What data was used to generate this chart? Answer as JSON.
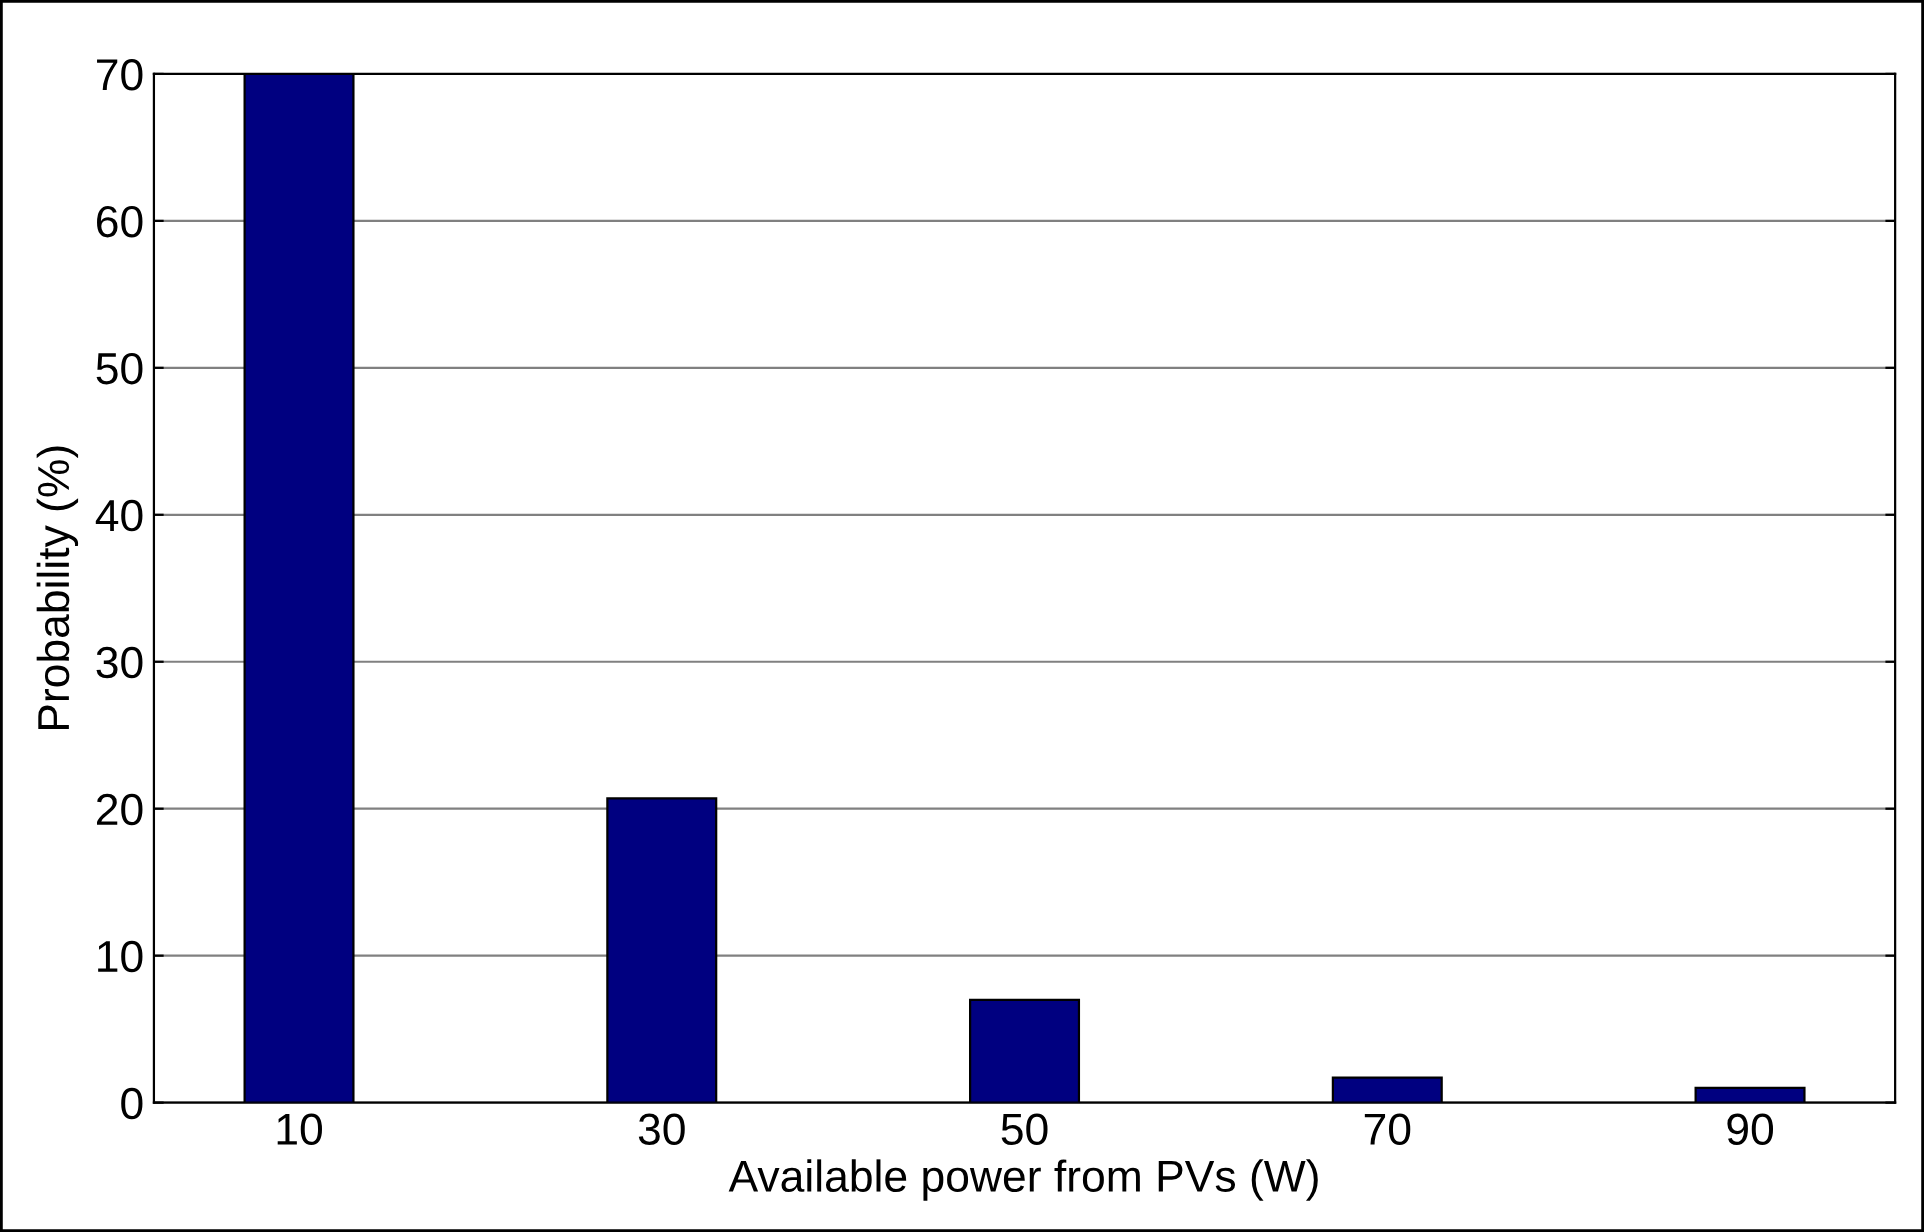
{
  "chart_data": {
    "type": "bar",
    "xlabel": "Available power from PVs (W)",
    "ylabel": "Probability (%)",
    "categories": [
      "10",
      "30",
      "50",
      "70",
      "90"
    ],
    "values": [
      70,
      20.7,
      7.0,
      1.7,
      1.0
    ],
    "color": "#000080",
    "ylim": [
      0,
      70
    ],
    "yticks": [
      0,
      10,
      20,
      30,
      40,
      50,
      60,
      70
    ],
    "grid": "y"
  }
}
